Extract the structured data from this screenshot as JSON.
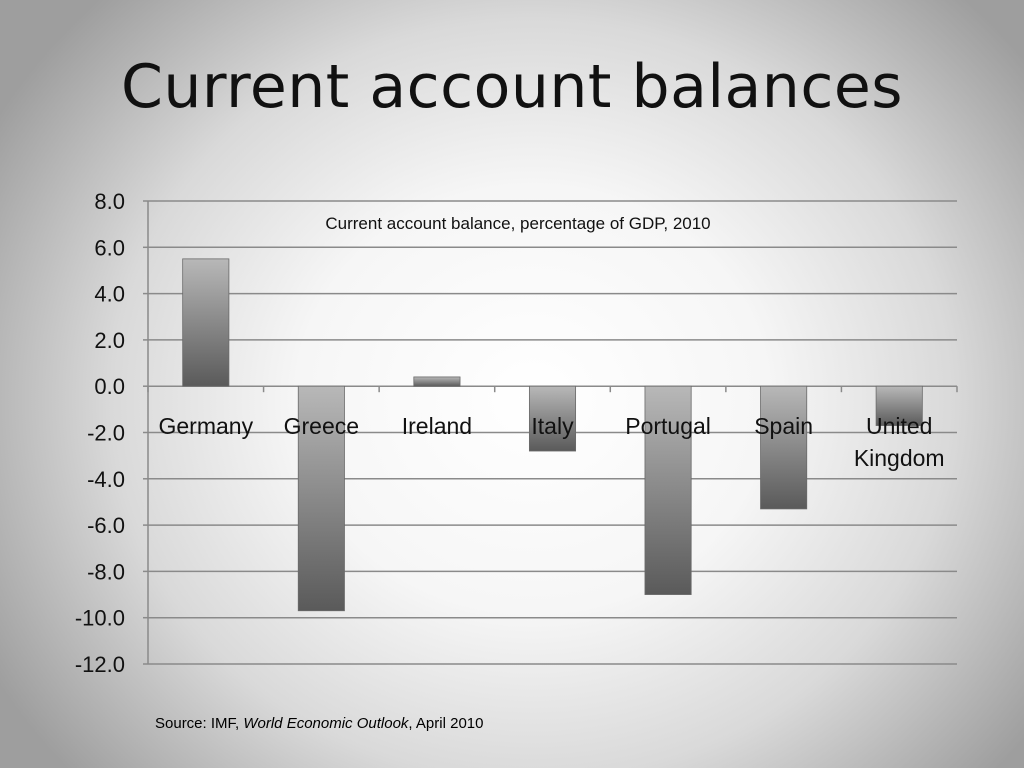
{
  "slide": {
    "title": "Current account balances",
    "source_prefix": "Source: IMF, ",
    "source_publication": "World Economic Outlook",
    "source_suffix": ", April 2010"
  },
  "colors": {
    "bar_light": "#b8b8b8",
    "bar_dark": "#5a5a5a",
    "grid": "#8a8a8a"
  },
  "chart_data": {
    "type": "bar",
    "title": "Current account balance, percentage of GDP, 2010",
    "xlabel": "",
    "ylabel": "",
    "categories": [
      [
        "Germany"
      ],
      [
        "Greece"
      ],
      [
        "Ireland"
      ],
      [
        "Italy"
      ],
      [
        "Portugal"
      ],
      [
        "Spain"
      ],
      [
        "United",
        "Kingdom"
      ]
    ],
    "values": [
      5.5,
      -9.7,
      0.4,
      -2.8,
      -9.0,
      -5.3,
      -1.7
    ],
    "ylim": [
      -12,
      8
    ],
    "yticks": [
      "8.0",
      "6.0",
      "4.0",
      "2.0",
      "0.0",
      "-2.0",
      "-4.0",
      "-6.0",
      "-8.0",
      "-10.0",
      "-12.0"
    ],
    "grid": true,
    "legend": "none"
  }
}
